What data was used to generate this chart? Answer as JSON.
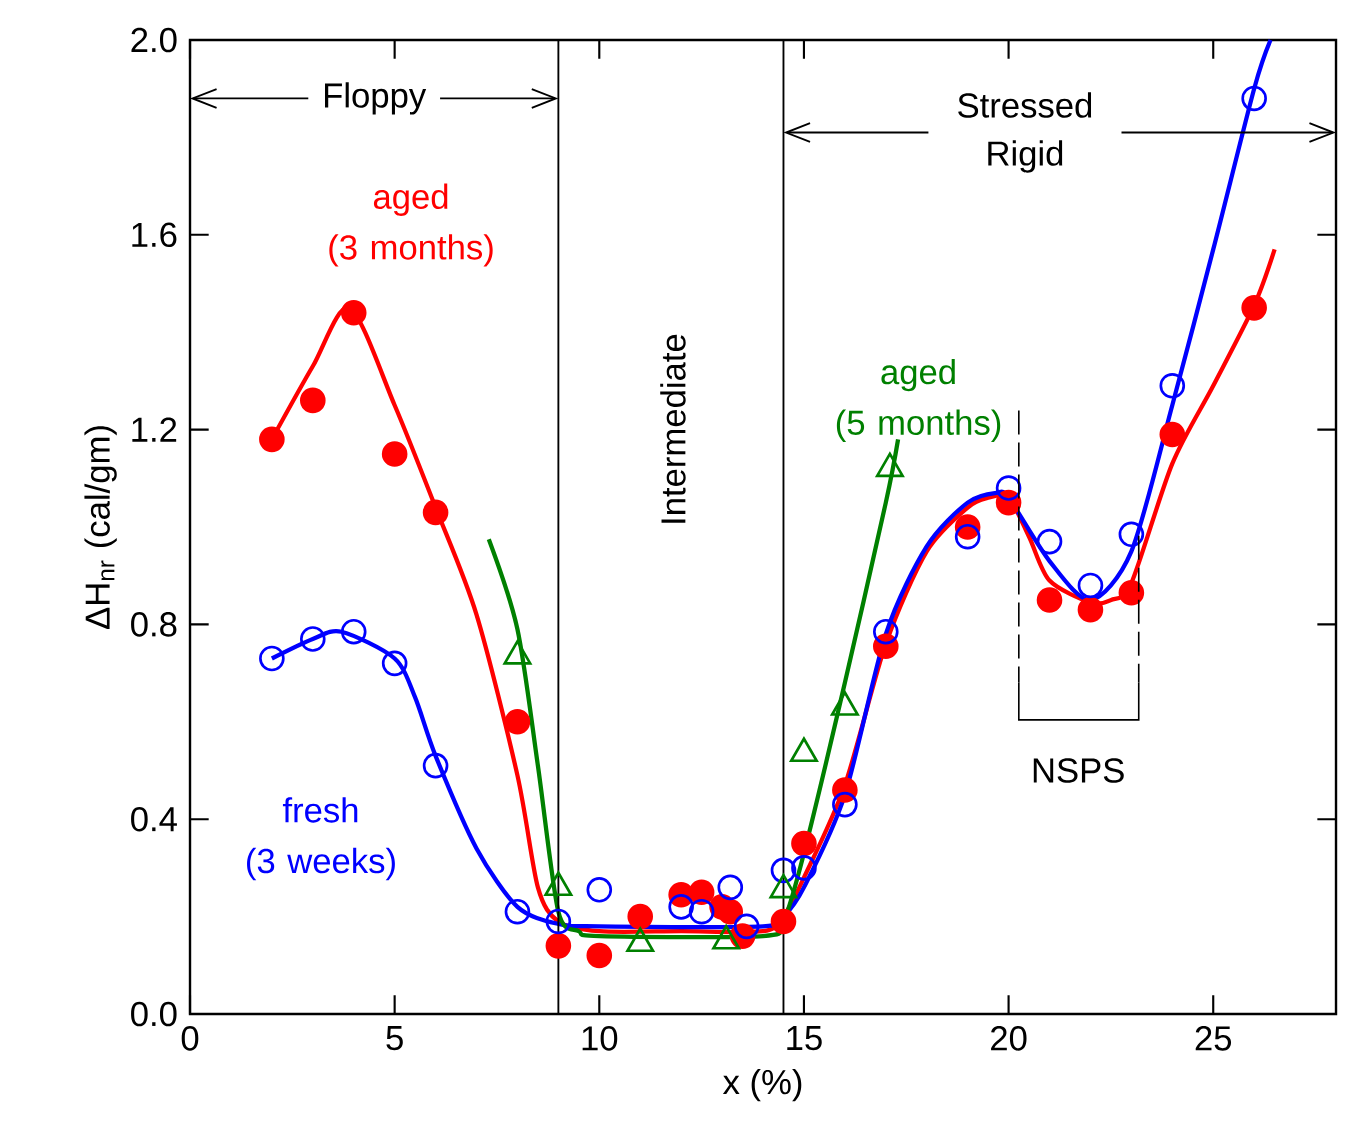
{
  "chart_data": {
    "type": "scatter",
    "xlabel": "x (%)",
    "ylabel": "ΔH$_{nr}$ (cal/gm)",
    "xlim": [
      0,
      28
    ],
    "ylim": [
      0,
      2
    ],
    "xticks": [
      0,
      5,
      10,
      15,
      20,
      25
    ],
    "yticks": [
      {
        "value": 0,
        "label": "0.0"
      },
      {
        "value": 0.4,
        "label": "0.4"
      },
      {
        "value": 0.8,
        "label": "0.8"
      },
      {
        "value": 1.2,
        "label": "1.2"
      },
      {
        "value": 1.6,
        "label": "1.6"
      },
      {
        "value": 2,
        "label": "2.0"
      }
    ],
    "grid": false,
    "series": [
      {
        "name": "aged (3 months)",
        "color": "#ff0000",
        "marker": "circle",
        "x": [
          2,
          3,
          4,
          5,
          6,
          8,
          9,
          10,
          11,
          12,
          12.5,
          13,
          13.2,
          13.5,
          14.5,
          15,
          16,
          17,
          19,
          20,
          21,
          22,
          23,
          24,
          26
        ],
        "values": [
          1.18,
          1.26,
          1.44,
          1.15,
          1.03,
          0.6,
          0.14,
          0.12,
          0.2,
          0.245,
          0.25,
          0.22,
          0.21,
          0.16,
          0.19,
          0.35,
          0.46,
          0.755,
          1.0,
          1.05,
          0.85,
          0.83,
          0.865,
          1.19,
          1.45
        ]
      },
      {
        "color": "#ff0000",
        "type": "line",
        "marker": "none",
        "x": [
          2,
          3,
          3.9,
          5,
          6,
          7,
          8,
          8.5,
          9,
          10,
          12,
          14,
          14.5,
          15,
          16,
          17,
          18,
          19,
          19.5,
          20,
          20.5,
          21,
          22,
          22.5,
          23,
          24,
          25,
          26,
          26.5
        ],
        "values": [
          1.18,
          1.33,
          1.45,
          1.25,
          1.04,
          0.82,
          0.49,
          0.26,
          0.19,
          0.17,
          0.17,
          0.17,
          0.2,
          0.28,
          0.47,
          0.76,
          0.95,
          1.04,
          1.06,
          1.06,
          0.98,
          0.89,
          0.845,
          0.85,
          0.885,
          1.13,
          1.29,
          1.455,
          1.57
        ]
      },
      {
        "name": "fresh (3 weeks)",
        "color": "#0000ff",
        "marker": "circle",
        "x": [
          2,
          3,
          4,
          5,
          6,
          8,
          9,
          10,
          12,
          12.5,
          13.2,
          13.6,
          14.5,
          15,
          16,
          17,
          19,
          20,
          21,
          22,
          23,
          24,
          26
        ],
        "values": [
          0.73,
          0.77,
          0.785,
          0.72,
          0.51,
          0.21,
          0.19,
          0.255,
          0.22,
          0.21,
          0.26,
          0.18,
          0.295,
          0.3,
          0.43,
          0.785,
          0.98,
          1.08,
          0.97,
          0.88,
          0.985,
          1.29,
          1.88
        ]
      },
      {
        "color": "#0000ff",
        "type": "line",
        "marker": "none",
        "x": [
          2,
          3,
          3.7,
          5,
          5.5,
          6,
          7,
          8,
          9,
          10,
          14,
          14.5,
          15,
          16,
          17,
          18,
          19,
          19.7,
          20,
          21,
          22,
          23,
          24,
          25,
          26,
          26.4
        ],
        "values": [
          0.73,
          0.77,
          0.785,
          0.73,
          0.65,
          0.53,
          0.34,
          0.22,
          0.185,
          0.18,
          0.18,
          0.2,
          0.26,
          0.45,
          0.78,
          0.96,
          1.05,
          1.07,
          1.06,
          0.93,
          0.85,
          0.95,
          1.25,
          1.57,
          1.9,
          2.0
        ]
      },
      {
        "name": "aged (5 months)",
        "color": "#008000",
        "marker": "triangle",
        "x": [
          8,
          9,
          11,
          13.1,
          14.5,
          15,
          16,
          17.1
        ],
        "values": [
          0.735,
          0.26,
          0.145,
          0.15,
          0.255,
          0.535,
          0.63,
          1.12
        ]
      },
      {
        "color": "#008000",
        "type": "line",
        "marker": "none",
        "x": [
          7.3,
          8,
          8.5,
          9,
          9.5,
          10,
          14,
          14.5,
          15,
          16,
          17,
          17.3
        ],
        "values": [
          0.975,
          0.79,
          0.51,
          0.21,
          0.17,
          0.16,
          0.16,
          0.19,
          0.33,
          0.68,
          1.05,
          1.18
        ]
      }
    ],
    "ref_lines": [
      {
        "axis": "x",
        "value": 9
      },
      {
        "axis": "x",
        "value": 14.5
      }
    ],
    "annotations": [
      {
        "text": "Floppy",
        "x": 9,
        "y": 1.88
      },
      "Intermediate",
      {
        "text": "Stressed Rigid",
        "x": 14.5,
        "y": 1.81
      },
      "NSPS"
    ]
  }
}
